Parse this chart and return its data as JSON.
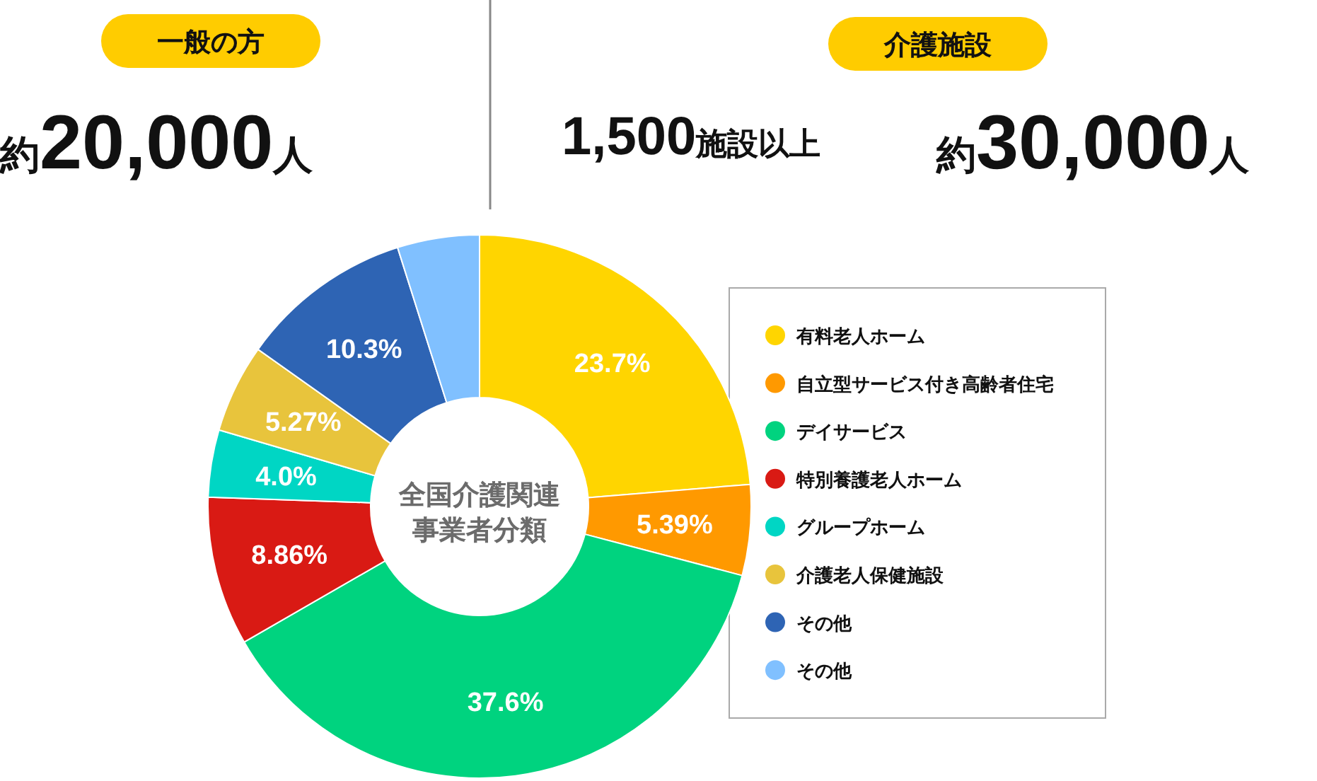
{
  "chart_data": {
    "type": "donut",
    "title": "全国介護関連事業者分類",
    "categories": [
      "有料老人ホーム",
      "自立型サービス付き高齢者住宅",
      "デイサービス",
      "特別養護老人ホーム",
      "グループホーム",
      "介護老人保健施設",
      "その他",
      "その他"
    ],
    "values": [
      23.7,
      5.39,
      37.6,
      8.86,
      4.0,
      5.27,
      10.3,
      4.88
    ],
    "value_labels": [
      "23.7%",
      "5.39%",
      "37.6%",
      "8.86%",
      "4.0%",
      "5.27%",
      "10.3%",
      null
    ],
    "colors": [
      "#ffd500",
      "#ff9900",
      "#00d37f",
      "#d91a14",
      "#00d6c4",
      "#e8c43c",
      "#2e64b4",
      "#80c0ff"
    ],
    "legend": "right",
    "annotations": [
      "一般の方",
      "約20,000人",
      "介護施設",
      "1,500施設以上",
      "約30,000人"
    ]
  }
}
